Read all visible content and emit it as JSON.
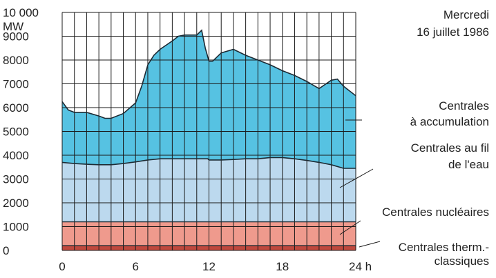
{
  "chart_data": {
    "type": "area",
    "title": "Mercredi",
    "subtitle": "16 juillet 1986",
    "ylabel": "MW",
    "x_unit": "h",
    "xlim": [
      0,
      24
    ],
    "ylim": [
      0,
      10000
    ],
    "grid": true,
    "x_ticks": [
      {
        "v": 0,
        "label": "0"
      },
      {
        "v": 6,
        "label": "6"
      },
      {
        "v": 12,
        "label": "12"
      },
      {
        "v": 18,
        "label": "18"
      },
      {
        "v": 24,
        "label": "24"
      }
    ],
    "y_ticks": [
      {
        "v": 0,
        "label": "0"
      },
      {
        "v": 1000,
        "label": "1000"
      },
      {
        "v": 2000,
        "label": "2000"
      },
      {
        "v": 3000,
        "label": "3000"
      },
      {
        "v": 4000,
        "label": "4000"
      },
      {
        "v": 5000,
        "label": "5000"
      },
      {
        "v": 6000,
        "label": "6000"
      },
      {
        "v": 7000,
        "label": "7000"
      },
      {
        "v": 8000,
        "label": "8000"
      },
      {
        "v": 9000,
        "label": "9000"
      },
      {
        "v": 10000,
        "label": "10 000"
      }
    ],
    "series": [
      {
        "name": "Centrales therm.- classiques",
        "label_lines": [
          "Centrales therm.-",
          "classiques"
        ],
        "color": "#c0483d",
        "x": [
          0,
          24
        ],
        "top": [
          200,
          200
        ]
      },
      {
        "name": "Centrales nucléaires",
        "label_lines": [
          "Centrales nucléaires"
        ],
        "color": "#ef9a8d",
        "x": [
          0,
          24
        ],
        "top": [
          1200,
          1200
        ]
      },
      {
        "name": "Centrales au fil de l'eau",
        "label_lines": [
          "Centrales au fil",
          "de l'eau"
        ],
        "color": "#bcd9ee",
        "x": [
          0,
          1,
          2,
          3,
          4,
          5,
          6,
          7,
          8,
          9,
          10,
          11,
          11.9,
          12,
          13,
          14,
          15,
          16,
          17,
          18,
          19,
          20,
          21,
          22,
          23,
          24
        ],
        "top": [
          3700,
          3650,
          3620,
          3600,
          3600,
          3650,
          3720,
          3800,
          3850,
          3850,
          3850,
          3850,
          3850,
          3800,
          3800,
          3820,
          3850,
          3850,
          3900,
          3900,
          3850,
          3780,
          3700,
          3600,
          3450,
          3450
        ]
      },
      {
        "name": "Centrales à accumulation",
        "label_lines": [
          "Centrales",
          "à accumulation"
        ],
        "color": "#56c2e2",
        "x": [
          0,
          0.5,
          1,
          2,
          3,
          3.5,
          4,
          5,
          6,
          6.5,
          7,
          7.5,
          8,
          9,
          9.5,
          10,
          11,
          11.4,
          11.7,
          12,
          12.3,
          13,
          14,
          15,
          16,
          17,
          18,
          19,
          20,
          21,
          22,
          22.5,
          23,
          24
        ],
        "top": [
          6250,
          5900,
          5800,
          5800,
          5650,
          5550,
          5550,
          5750,
          6200,
          6900,
          7800,
          8200,
          8450,
          8800,
          9000,
          9050,
          9050,
          9250,
          8500,
          7950,
          7950,
          8300,
          8450,
          8200,
          8000,
          7800,
          7550,
          7350,
          7100,
          6800,
          7150,
          7200,
          6900,
          6500
        ]
      }
    ]
  }
}
